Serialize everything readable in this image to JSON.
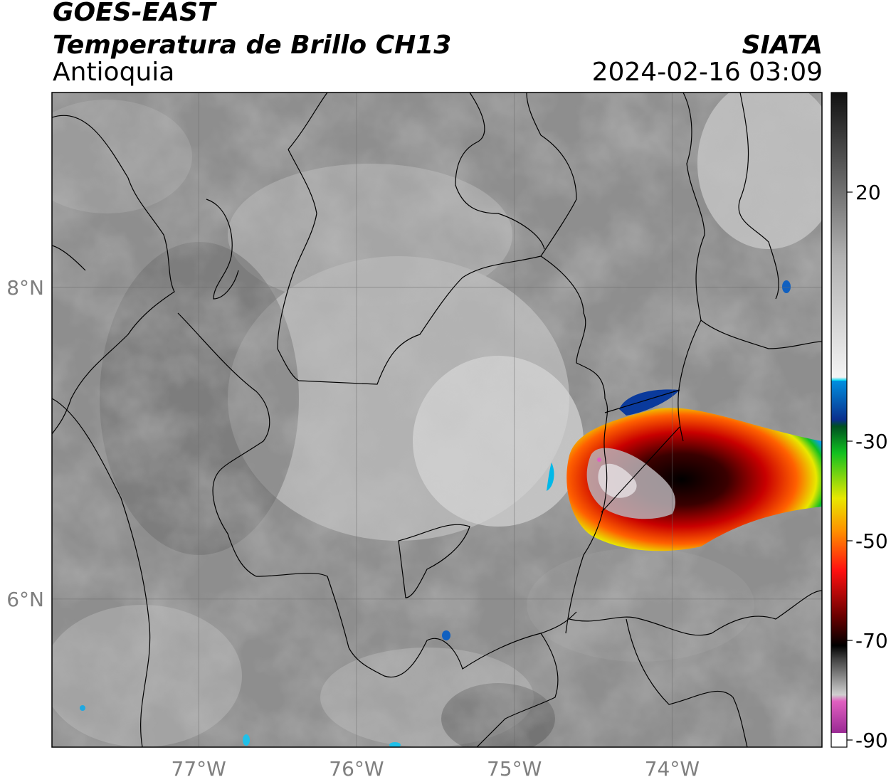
{
  "header": {
    "satellite": "GOES-EAST",
    "product": "Temperatura de Brillo CH13",
    "region": "Antioquia",
    "organization": "SIATA",
    "datetime": "2024-02-16 03:09"
  },
  "map": {
    "lon_range": [
      -77.93,
      -73.05
    ],
    "lat_range": [
      5.05,
      9.25
    ],
    "lon_ticks": [
      {
        "value": -77,
        "label": "77°W"
      },
      {
        "value": -76,
        "label": "76°W"
      },
      {
        "value": -75,
        "label": "75°W"
      },
      {
        "value": -74,
        "label": "74°W"
      }
    ],
    "lat_ticks": [
      {
        "value": 8,
        "label": "8°N"
      },
      {
        "value": 6,
        "label": "6°N"
      }
    ],
    "gridlines": true
  },
  "colorbar": {
    "range": [
      -90,
      40
    ],
    "ticks": [
      {
        "value": 20,
        "label": "20"
      },
      {
        "value": -30,
        "label": "-30"
      },
      {
        "value": -50,
        "label": "-50"
      },
      {
        "value": -70,
        "label": "-70"
      },
      {
        "value": -90,
        "label": "-90"
      }
    ],
    "colors": {
      "warm_black": "#111111",
      "mid_gray": "#8a8a8a",
      "white": "#f2f2f2",
      "cyan": "#00d7f0",
      "blue": "#0a2f8c",
      "green": "#10c020",
      "yellow": "#e8e800",
      "orange": "#ff8c00",
      "red": "#e01010",
      "dark_red": "#5a0000",
      "black": "#000000",
      "light_gray": "#c8c8c8",
      "pink": "#e060c0",
      "purple": "#7a1080"
    }
  }
}
